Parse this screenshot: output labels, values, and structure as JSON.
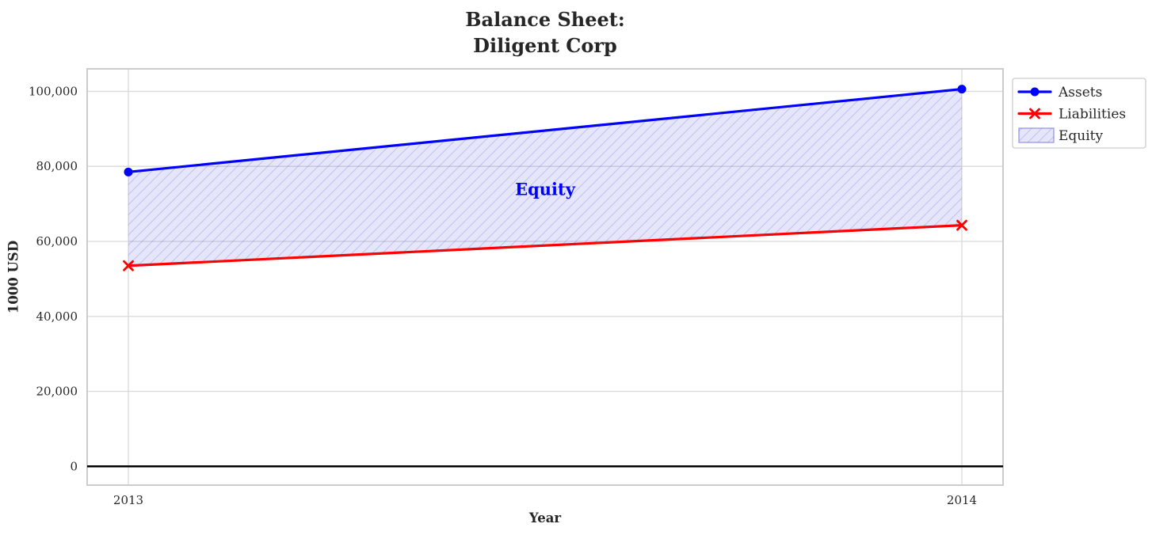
{
  "chart_data": {
    "type": "line",
    "title": "Balance Sheet:\nDiligent Corp",
    "title_lines": [
      "Balance Sheet:",
      "Diligent Corp"
    ],
    "xlabel": "Year",
    "ylabel": "1000 USD",
    "categories": [
      "2013",
      "2014"
    ],
    "series": [
      {
        "name": "Assets",
        "values": [
          78500,
          100600
        ],
        "color": "#0000ff",
        "marker": "circle"
      },
      {
        "name": "Liabilities",
        "values": [
          53500,
          64300
        ],
        "color": "#ff0000",
        "marker": "x"
      }
    ],
    "fill_between": {
      "label": "Equity",
      "upper": "Assets",
      "lower": "Liabilities",
      "hatch": "//",
      "facecolor": "rgba(64,64,224,0.13)",
      "hatchcolor": "rgba(90,90,220,0.28)",
      "edgecolor": "rgba(90,90,220,0.55)"
    },
    "annotation": {
      "text": "Equity",
      "x": 2013.5,
      "y": 74000,
      "color": "#0000ff"
    },
    "ylim": [
      -5000,
      106000
    ],
    "yticks": {
      "values": [
        0,
        20000,
        40000,
        60000,
        80000,
        100000
      ],
      "labels": [
        "0",
        "20,000",
        "40,000",
        "60,000",
        "80,000",
        "100,000"
      ]
    },
    "zero_line": true,
    "grid": true,
    "legend": {
      "position": "outside-upper-right",
      "entries": [
        "Assets",
        "Liabilities",
        "Equity"
      ]
    },
    "colors": {
      "grid": "#d9d9d9",
      "spine": "#cccccc",
      "text": "#262626",
      "zero_line": "#000000",
      "legend_border": "#cccccc",
      "legend_bg": "#ffffff"
    }
  }
}
